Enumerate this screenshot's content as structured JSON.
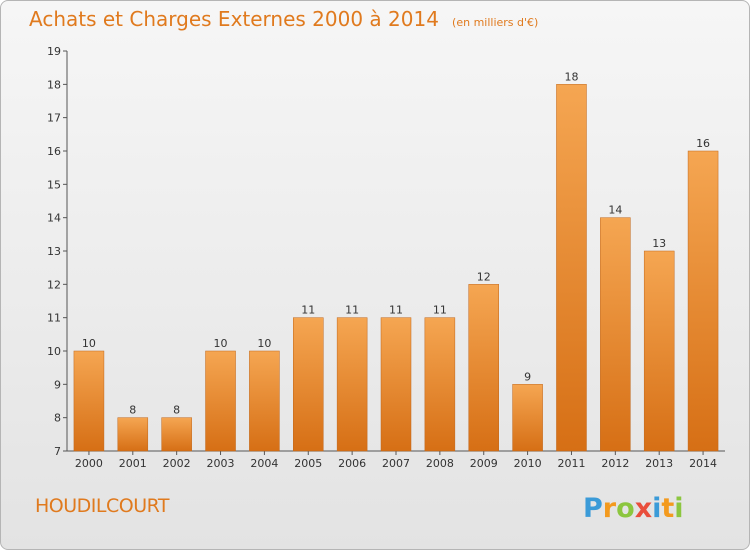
{
  "chart_data": {
    "type": "bar",
    "title": "Achats et Charges Externes 2000 à 2014",
    "unit": "(en milliers d'€)",
    "xlabel": "",
    "ylabel": "",
    "categories": [
      "2000",
      "2001",
      "2002",
      "2003",
      "2004",
      "2005",
      "2006",
      "2007",
      "2008",
      "2009",
      "2010",
      "2011",
      "2012",
      "2013",
      "2014"
    ],
    "values": [
      10,
      8,
      8,
      10,
      10,
      11,
      11,
      11,
      11,
      12,
      9,
      18,
      14,
      13,
      16
    ],
    "ylim": [
      7,
      19
    ],
    "yticks": [
      7,
      8,
      9,
      10,
      11,
      12,
      13,
      14,
      15,
      16,
      17,
      18,
      19
    ],
    "grid": false,
    "colors": {
      "bar_top": "#f5a652",
      "bar_bottom": "#d66f15",
      "title": "#e07a1e"
    }
  },
  "footer": {
    "commune": "HOUDILCOURT",
    "logo": "Proxiti"
  }
}
